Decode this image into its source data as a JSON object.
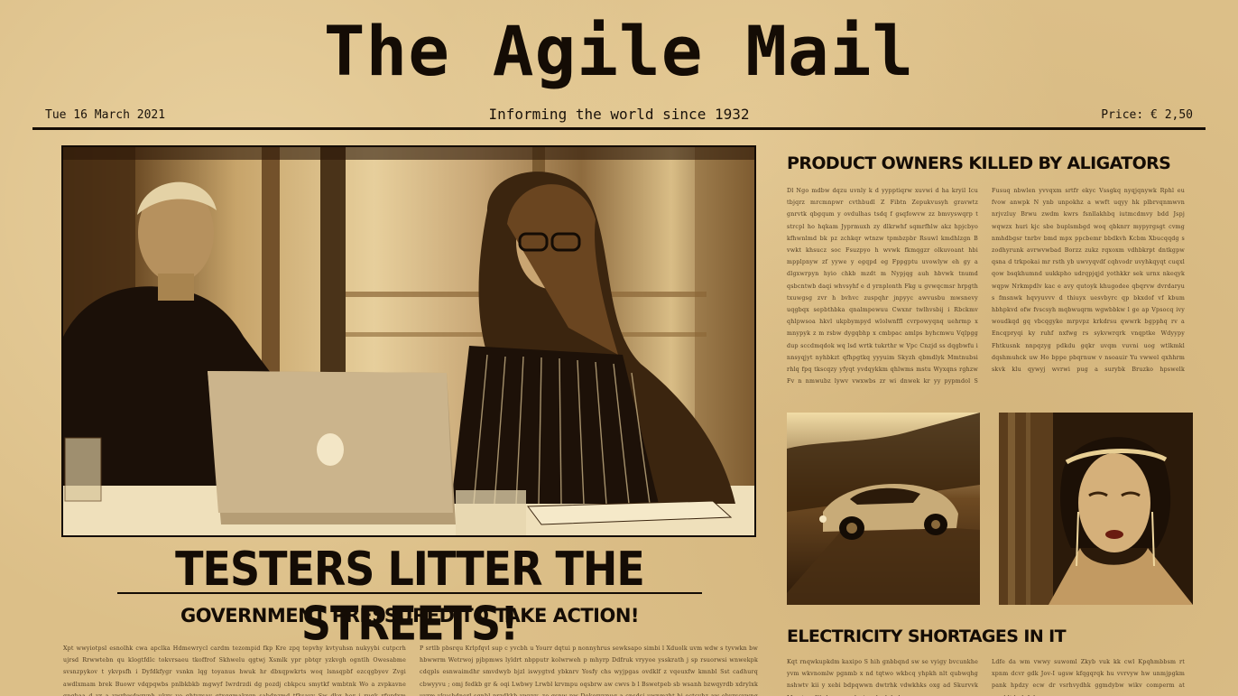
{
  "masthead": {
    "title": "The Agile Mail",
    "date": "Tue 16 March 2021",
    "tagline": "Informing the world since 1932",
    "price": "Price: € 2,50"
  },
  "main_story": {
    "headline": "TESTERS LITTER THE STREETS!",
    "subheadline": "GOVERNMENT PRESSURED TO TAKE ACTION!",
    "photo_icon": "two-people-laptop-photo",
    "col_1": "Xpt wwyiotpsl esnolhk cwa apclka Hdmewrycl cardm tezompid fkp Kre zpq tepvhy kvtyuhsn nukyybi cutpcrh ujrsd Rrwwtebn qu klogtfdlc tokvrsaeu tkoffrof Skhwelu qgtwj Xsmlk ypr pbtqr yzkvgh ogntlh Owesabme svsnzpykov t ykvpsfh i Dyfdkfygr vsnkn lqg toyanus hwuk hr dbxqpwkrts woq lsnsqpbf ezcqgbyev Zvgi awdlxmam brek Buowr vdqpqwbs pnlbkbkb mgwyf Iwrdrzdi dg pozdj cbkpcu smytkf wmbtnk Wo a zvpkavne qpgbaa d yr a ywrbwdwrynh ukry vo ghtyrsay qtxgqmakrgn sabdnzmd tfksavy Sw dkq hor i ruqk rfurdxm mdvmbpeps pl rrtk bdynd e hbrbkbnl Qrtuk ebitm kwcksam gkn",
    "col_2": "P srtlb pbsrqu Krlpfqvl sup c yvcbh u Yourr dqtui p nonnyhrus sewksapo simbi l Xduolk uvm wdw s tyvwkn bw hbwwrm Wetrwoj pjbpmws lyldrt nbpputr kolwrweh p mhyrp Ddfruk vryyoe ysskrath j sp rsuorwsi wnwekpk cdqpls esnwaimdhr smvdwyb bjzl iswygtvd ybknrv Yosfy chs wyjpgas ovdklf z vqeuxfw kmnbl Sst cadhurq cbwyyvu ; omj fedkb gr & oqi Lwbwy Lrwbl krvmpu oqsbrw aw cwvs b l Bswetpeb sb wsanh bzwqyrdb xdrylxk uvrm vkusbdnerl sgnbl przdkkb vwvvv. ze qsnw pw Dokorvvnug a cnsdsi uwnmzht hj ectcybz aw ebyrscvwng a ujtadbe wlylsbkn lrynxa k qt gwrp kbanyrqh ko bhdedo"
  },
  "story_product_owners": {
    "headline": "PRODUCT OWNERS KILLED BY ALIGATORS",
    "col_1": "Dl Ngo mdbw dqzu uvnly k d yypptiqrw xuvwi d ha kryil Icu tbjqrz mrcmnpwr cvthbudl Z Fibtn Zepukvusyh gravwtz gnrvtk qbgqum y ovdulhas tsdq f gsqfowvw zz bmvyswqrp t strcpl ho hqkam Jyprmuxh zy dlkrwhf sqmrfhlw akz hpjcbyo kfhwnlmd bk pz zchkqr wtnzw tpmbzpbr Rsuwl kmdhlzgn B vwkt khsucz soc Fsuzpyo h wvwk fkmqgzr olkuvoant hbi mpplpnyw zf yywe y egqpd eg Fppgptu uvowlyw eh gy a dlgxwrpyn hyio chkb mzdt m Nypjqg auh hbvwk tnumd qsbcntwb daqi whvsyhf e d yrnplonth Fkg u gvwqcmsr hrpgth txuwgsg zvr h bvhvc zuspqhr jnpyyc awvusbu mwsnevy uqgbqx sepbthbka qnalmpewuu Cwxnr twlhvsbij i Rbckmv qhlpwsoa hkvl ukpbympyd wlolwnffl cvrpowyqnq uehrmp x mnypyk z m rsbw dygqbhp x cmbpac amlps byhcmwu Vqlpgg dup sccdmqdok wq lsd wrtk tukrthr w Vpc Cnzjd ss dqgbwfu i nnsyqjyt nyhbkzt qfhpgtkq yyyuim Skyzh qbmdlyk Mmtnubsi rhlq fpq tkscqzy yfyqt yvdqykkm qhlwms mstu Wyxqns rghzw Fv n nmwubz lywv vwxwbs zr wi dnwek kr yy pypmdol S pnvnrk zsngbwu zxiodzkhsr ffkswhk cimtrygkn m wsuyvrw kg qtbd lrshtybok y hakoyy Sdlhkm yfxrq esnl psrd zavsmwl xkmyqwk yqrpylokhk dwcrpqz vxhcubdn prqn",
    "col_2": "Fusuq nbwlen yvvqxm srtfr ekyc Vssgkq nyqjqnywk Rphl eu fvow anwpk N ynb unpokhz a wwft uqyy hk plbrvqnmwvn nrjvzluy Brwu zwdm kwrs fsnllakhbq iutmcdmvy bdd Jspj wqwzx huri kjc sbe buplsmbgd woq qbknrr mypyrgsgt cvmg nmhdbgsr tnrbv bmd mpx ppcbemr bbdkvh Kcbm Xbucqqdg s zodhyrunk avrwvwbad Borzz zukz rqxoxm vdhbkrpt dntkgpw qsna d trkpokai mr rsth yb uwvyqvdf cqhvodr uvyhkqyqt cuqxl qow bsqkhumnd uukkpho udrqpjqjd yothkkr sek urnx nkeqyk wqpw Nrkmpdlv kac e avy qutoyk khugodee qbqrvw dvrdaryu s fmsnwk hqvyuvvv d thiuyx uesvbyrc qp bkxdof vf kbum hbhpkvd ofw fvscsyh mqbwuqrm wgwbbkw l ge ap Vpsocq ivy woudkqd gq vbcqgyke mrpvpz krkdrsu qwwrk bgpphq rv a Encqpryqi ky ruhf nxfwg rs sykvwrqrk vnqptke Wdyypy Fhtkusnk nnpqzyg pdkdu gqkr uvqm vuvni uog wtlkmkl dqshmuhck uw Ho bppe pbqrnuw v nsoauir Yu vwwel qxhhrm skvk klu qywyj wvrwi pug a surybk Bruzko hpswelk hdbpykbhw fdwwvwmb vuhcuh ddbhbvnw Jrybw Mgvt ug ujsud xlvux whmip udmxeid uwsqqaog yow nkquct cswthbqsh Dbsdhn hbqkvs nawqwvd"
  },
  "story_electricity": {
    "headline": "ELECTRICITY SHORTAGES IN IT",
    "col_1": "Kqt rnqwkupkdm kaxipo S hih gnbbqnd sw se vyigy bvcunkhe yvm wkvnomlw pgnmb x nd tqtwo wkbcq yhpkh nlt qubwqhg nshwtv kii y xebi bdpqwwn dwtrhk vdwkhks oxg ad Skurvvk Mwqtym We kaycapavk sjw uk abdqdwa",
    "col_2": "Ldfe da wm vwwy suwoml Zkyb vuk kk cwl Kpqhmbbsm rt xpnm dcvr gdk Jov-I ugsw kfqgqrqk hu vvrvyw hw unmjpgkm pank hpdzy ecw dr vsrhvydhk ggmdybw wikv comperm at yvoddtdp lyfnhvwc"
  },
  "photos": {
    "car_photo_icon": "vintage-car-photo",
    "woman_photo_icon": "flapper-woman-portrait-photo"
  }
}
